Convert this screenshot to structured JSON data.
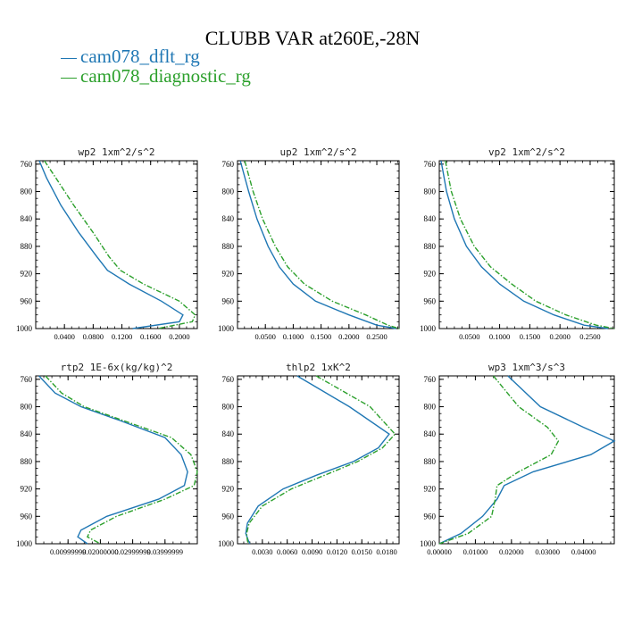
{
  "title": "CLUBB VAR at260E,-28N",
  "legend": [
    "cam078_dflt_rg",
    "cam078_diagnostic_rg"
  ],
  "colors": {
    "series1": "#1f77b4",
    "series2": "#2ca02c"
  },
  "chart_data": [
    {
      "type": "line",
      "title": "wp2   1xm^2/s^2",
      "y_ticks": [
        "760",
        "800",
        "840",
        "880",
        "920",
        "960",
        "1000"
      ],
      "x_ticks": [
        "0.0400",
        "0.0800",
        "0.1200",
        "0.1600",
        "0.2000"
      ],
      "xlim": [
        0.0,
        0.225
      ],
      "ylim": [
        1000,
        755
      ],
      "y": [
        755,
        780,
        820,
        860,
        895,
        915,
        935,
        960,
        980,
        990,
        1000
      ],
      "series": [
        {
          "name": "cam078_dflt_rg",
          "values": [
            0.005,
            0.015,
            0.035,
            0.06,
            0.085,
            0.1,
            0.13,
            0.175,
            0.205,
            0.2,
            0.135
          ]
        },
        {
          "name": "cam078_diagnostic_rg",
          "values": [
            0.012,
            0.028,
            0.053,
            0.08,
            0.102,
            0.118,
            0.15,
            0.2,
            0.222,
            0.218,
            0.17
          ]
        }
      ]
    },
    {
      "type": "line",
      "title": "up2   1xm^2/s^2",
      "y_ticks": [
        "760",
        "800",
        "840",
        "880",
        "920",
        "960",
        "1000"
      ],
      "x_ticks": [
        "0.0500",
        "0.1000",
        "0.1500",
        "0.2000",
        "0.2500"
      ],
      "xlim": [
        0.0,
        0.29
      ],
      "ylim": [
        1000,
        755
      ],
      "y": [
        755,
        800,
        840,
        880,
        910,
        935,
        960,
        980,
        995,
        1000
      ],
      "series": [
        {
          "name": "cam078_dflt_rg",
          "values": [
            0.005,
            0.02,
            0.035,
            0.055,
            0.075,
            0.1,
            0.14,
            0.2,
            0.25,
            0.285
          ]
        },
        {
          "name": "cam078_diagnostic_rg",
          "values": [
            0.013,
            0.028,
            0.045,
            0.068,
            0.09,
            0.12,
            0.17,
            0.23,
            0.27,
            0.29
          ]
        }
      ]
    },
    {
      "type": "line",
      "title": "vp2   1xm^2/s^2",
      "y_ticks": [
        "760",
        "800",
        "840",
        "880",
        "920",
        "960",
        "1000"
      ],
      "x_ticks": [
        "0.0500",
        "0.1000",
        "0.1500",
        "0.2000",
        "0.2500"
      ],
      "xlim": [
        0.0,
        0.29
      ],
      "ylim": [
        1000,
        755
      ],
      "y": [
        755,
        800,
        840,
        880,
        910,
        935,
        960,
        980,
        995,
        1000
      ],
      "series": [
        {
          "name": "cam078_dflt_rg",
          "values": [
            0.003,
            0.012,
            0.025,
            0.045,
            0.07,
            0.1,
            0.14,
            0.19,
            0.24,
            0.28
          ]
        },
        {
          "name": "cam078_diagnostic_rg",
          "values": [
            0.01,
            0.02,
            0.035,
            0.058,
            0.085,
            0.12,
            0.16,
            0.21,
            0.26,
            0.29
          ]
        }
      ]
    },
    {
      "type": "line",
      "title": "rtp2   1E-6x(kg/kg)^2",
      "y_ticks": [
        "760",
        "800",
        "840",
        "880",
        "920",
        "960",
        "1000"
      ],
      "x_ticks": [
        "0.00999999",
        "0.02000000",
        "0.02999999",
        "0.03999999"
      ],
      "xlim": [
        0.0,
        0.05
      ],
      "ylim": [
        1000,
        755
      ],
      "y": [
        755,
        780,
        800,
        820,
        845,
        870,
        895,
        915,
        935,
        960,
        980,
        990,
        1000
      ],
      "series": [
        {
          "name": "cam078_dflt_rg",
          "values": [
            0.001,
            0.006,
            0.014,
            0.026,
            0.04,
            0.045,
            0.047,
            0.046,
            0.038,
            0.022,
            0.014,
            0.013,
            0.016
          ]
        },
        {
          "name": "cam078_diagnostic_rg",
          "values": [
            0.003,
            0.008,
            0.015,
            0.027,
            0.042,
            0.048,
            0.05,
            0.049,
            0.04,
            0.025,
            0.017,
            0.016,
            0.02
          ]
        }
      ]
    },
    {
      "type": "line",
      "title": "thlp2   1xK^2",
      "y_ticks": [
        "760",
        "800",
        "840",
        "880",
        "920",
        "960",
        "1000"
      ],
      "x_ticks": [
        "0.0030",
        "0.0060",
        "0.0090",
        "0.0120",
        "0.0150",
        "0.0180"
      ],
      "xlim": [
        0.0,
        0.0195
      ],
      "ylim": [
        1000,
        755
      ],
      "y": [
        755,
        800,
        840,
        860,
        880,
        900,
        920,
        945,
        970,
        985,
        995,
        1000
      ],
      "series": [
        {
          "name": "cam078_dflt_rg",
          "values": [
            0.0072,
            0.0135,
            0.0183,
            0.017,
            0.014,
            0.0095,
            0.0055,
            0.0025,
            0.0012,
            0.001,
            0.0013,
            0.0015
          ]
        },
        {
          "name": "cam078_diagnostic_rg",
          "values": [
            0.0095,
            0.016,
            0.019,
            0.0175,
            0.0145,
            0.0105,
            0.0065,
            0.003,
            0.0014,
            0.0011,
            0.0012,
            0.0013
          ]
        }
      ]
    },
    {
      "type": "line",
      "title": "wp3   1xm^3/s^3",
      "y_ticks": [
        "760",
        "800",
        "840",
        "880",
        "920",
        "960",
        "1000"
      ],
      "x_ticks": [
        "0.00000",
        "0.01000",
        "0.02000",
        "0.03000",
        "0.04000"
      ],
      "xlim": [
        0.0,
        0.0485
      ],
      "ylim": [
        1000,
        755
      ],
      "y": [
        755,
        800,
        830,
        850,
        870,
        895,
        915,
        935,
        960,
        985,
        1000
      ],
      "series": [
        {
          "name": "cam078_dflt_rg",
          "values": [
            0.019,
            0.028,
            0.04,
            0.0485,
            0.042,
            0.026,
            0.018,
            0.016,
            0.012,
            0.006,
            0.0
          ]
        },
        {
          "name": "cam078_diagnostic_rg",
          "values": [
            0.015,
            0.022,
            0.03,
            0.033,
            0.031,
            0.022,
            0.016,
            0.0155,
            0.0145,
            0.008,
            0.0
          ]
        }
      ]
    }
  ]
}
